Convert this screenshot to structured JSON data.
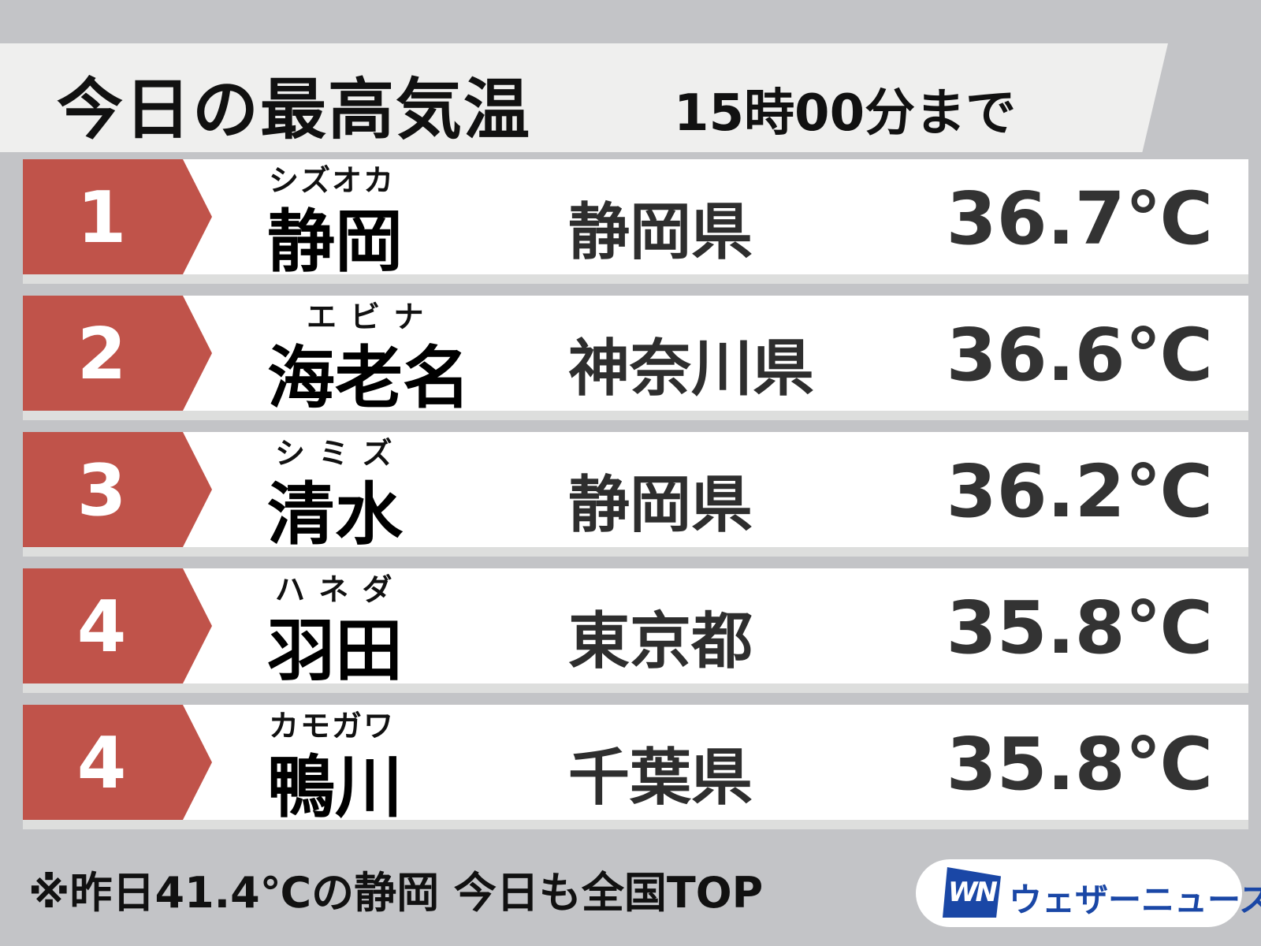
{
  "header": {
    "title": "今日の最高気温",
    "subtitle": "15時00分まで"
  },
  "rows": [
    {
      "rank": "1",
      "ruby": "シズオカ",
      "name": "静岡",
      "prefecture": "静岡県",
      "temp": "36.7℃"
    },
    {
      "rank": "2",
      "ruby": "エ ビ ナ",
      "name": "海老名",
      "prefecture": "神奈川県",
      "temp": "36.6℃"
    },
    {
      "rank": "3",
      "ruby": "シ ミ ズ",
      "name": "清水",
      "prefecture": "静岡県",
      "temp": "36.2℃"
    },
    {
      "rank": "4",
      "ruby": "ハ ネ ダ",
      "name": "羽田",
      "prefecture": "東京都",
      "temp": "35.8℃"
    },
    {
      "rank": "4",
      "ruby": "カモガワ",
      "name": "鴨川",
      "prefecture": "千葉県",
      "temp": "35.8℃"
    }
  ],
  "footer": {
    "note": "※昨日41.4℃の静岡 今日も全国TOP",
    "logo_mark": "WN",
    "brand": "ウェザーニュース"
  },
  "colors": {
    "rank_badge": "#c0534a",
    "brand": "#1a47a6",
    "background": "#c3c4c7"
  }
}
